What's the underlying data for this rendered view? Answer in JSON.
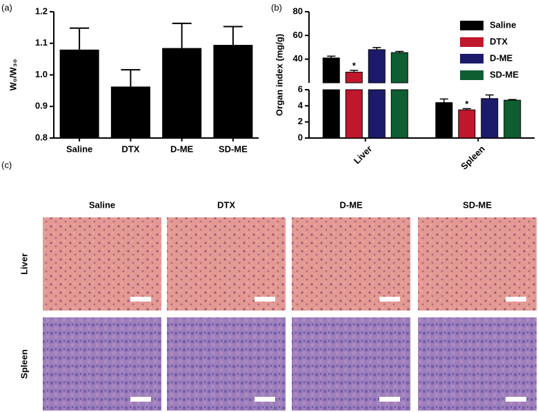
{
  "chart_data": [
    {
      "type": "bar",
      "panel_label": "(a)",
      "ylabel": "W₀/W₃₀",
      "categories": [
        "Saline",
        "DTX",
        "D-ME",
        "SD-ME"
      ],
      "values": [
        1.08,
        0.963,
        1.085,
        1.095
      ],
      "errors": [
        0.068,
        0.053,
        0.078,
        0.058
      ],
      "color": "#000000",
      "ylim": [
        0.8,
        1.2
      ],
      "yticks": [
        0.8,
        0.9,
        {
          "value": 1,
          "label": "1.0"
        },
        1.1,
        1.2
      ]
    },
    {
      "type": "grouped_bar_broken",
      "panel_label": "(b)",
      "ylabel": "Organ index (mg/g)",
      "categories": [
        "Liver",
        "Spleen"
      ],
      "series": [
        {
          "name": "Saline",
          "color": "#000000",
          "values": [
            41,
            4.4
          ],
          "errors": [
            1.5,
            0.45
          ]
        },
        {
          "name": "DTX",
          "color": "#c0172c",
          "values": [
            29,
            3.5
          ],
          "errors": [
            1.5,
            0.15
          ],
          "value_annotations": [
            "*",
            "*"
          ]
        },
        {
          "name": "D-ME",
          "color": "#1c1a6b",
          "values": [
            48,
            4.9
          ],
          "errors": [
            1.8,
            0.45
          ]
        },
        {
          "name": "SD-ME",
          "color": "#0e5e32",
          "values": [
            45.5,
            4.7
          ],
          "errors": [
            1,
            0.08
          ]
        }
      ],
      "ylim_lower": [
        0,
        6
      ],
      "yticks_lower": [
        0,
        2,
        4,
        6
      ],
      "ylim_upper": [
        20,
        80
      ],
      "yticks_upper": [
        40,
        60,
        80
      ],
      "legend": "upper right"
    }
  ],
  "panel_c": {
    "label": "(c)",
    "columns": [
      "Saline",
      "DTX",
      "D-ME",
      "SD-ME"
    ],
    "rows": [
      "Liver",
      "Spleen"
    ]
  }
}
